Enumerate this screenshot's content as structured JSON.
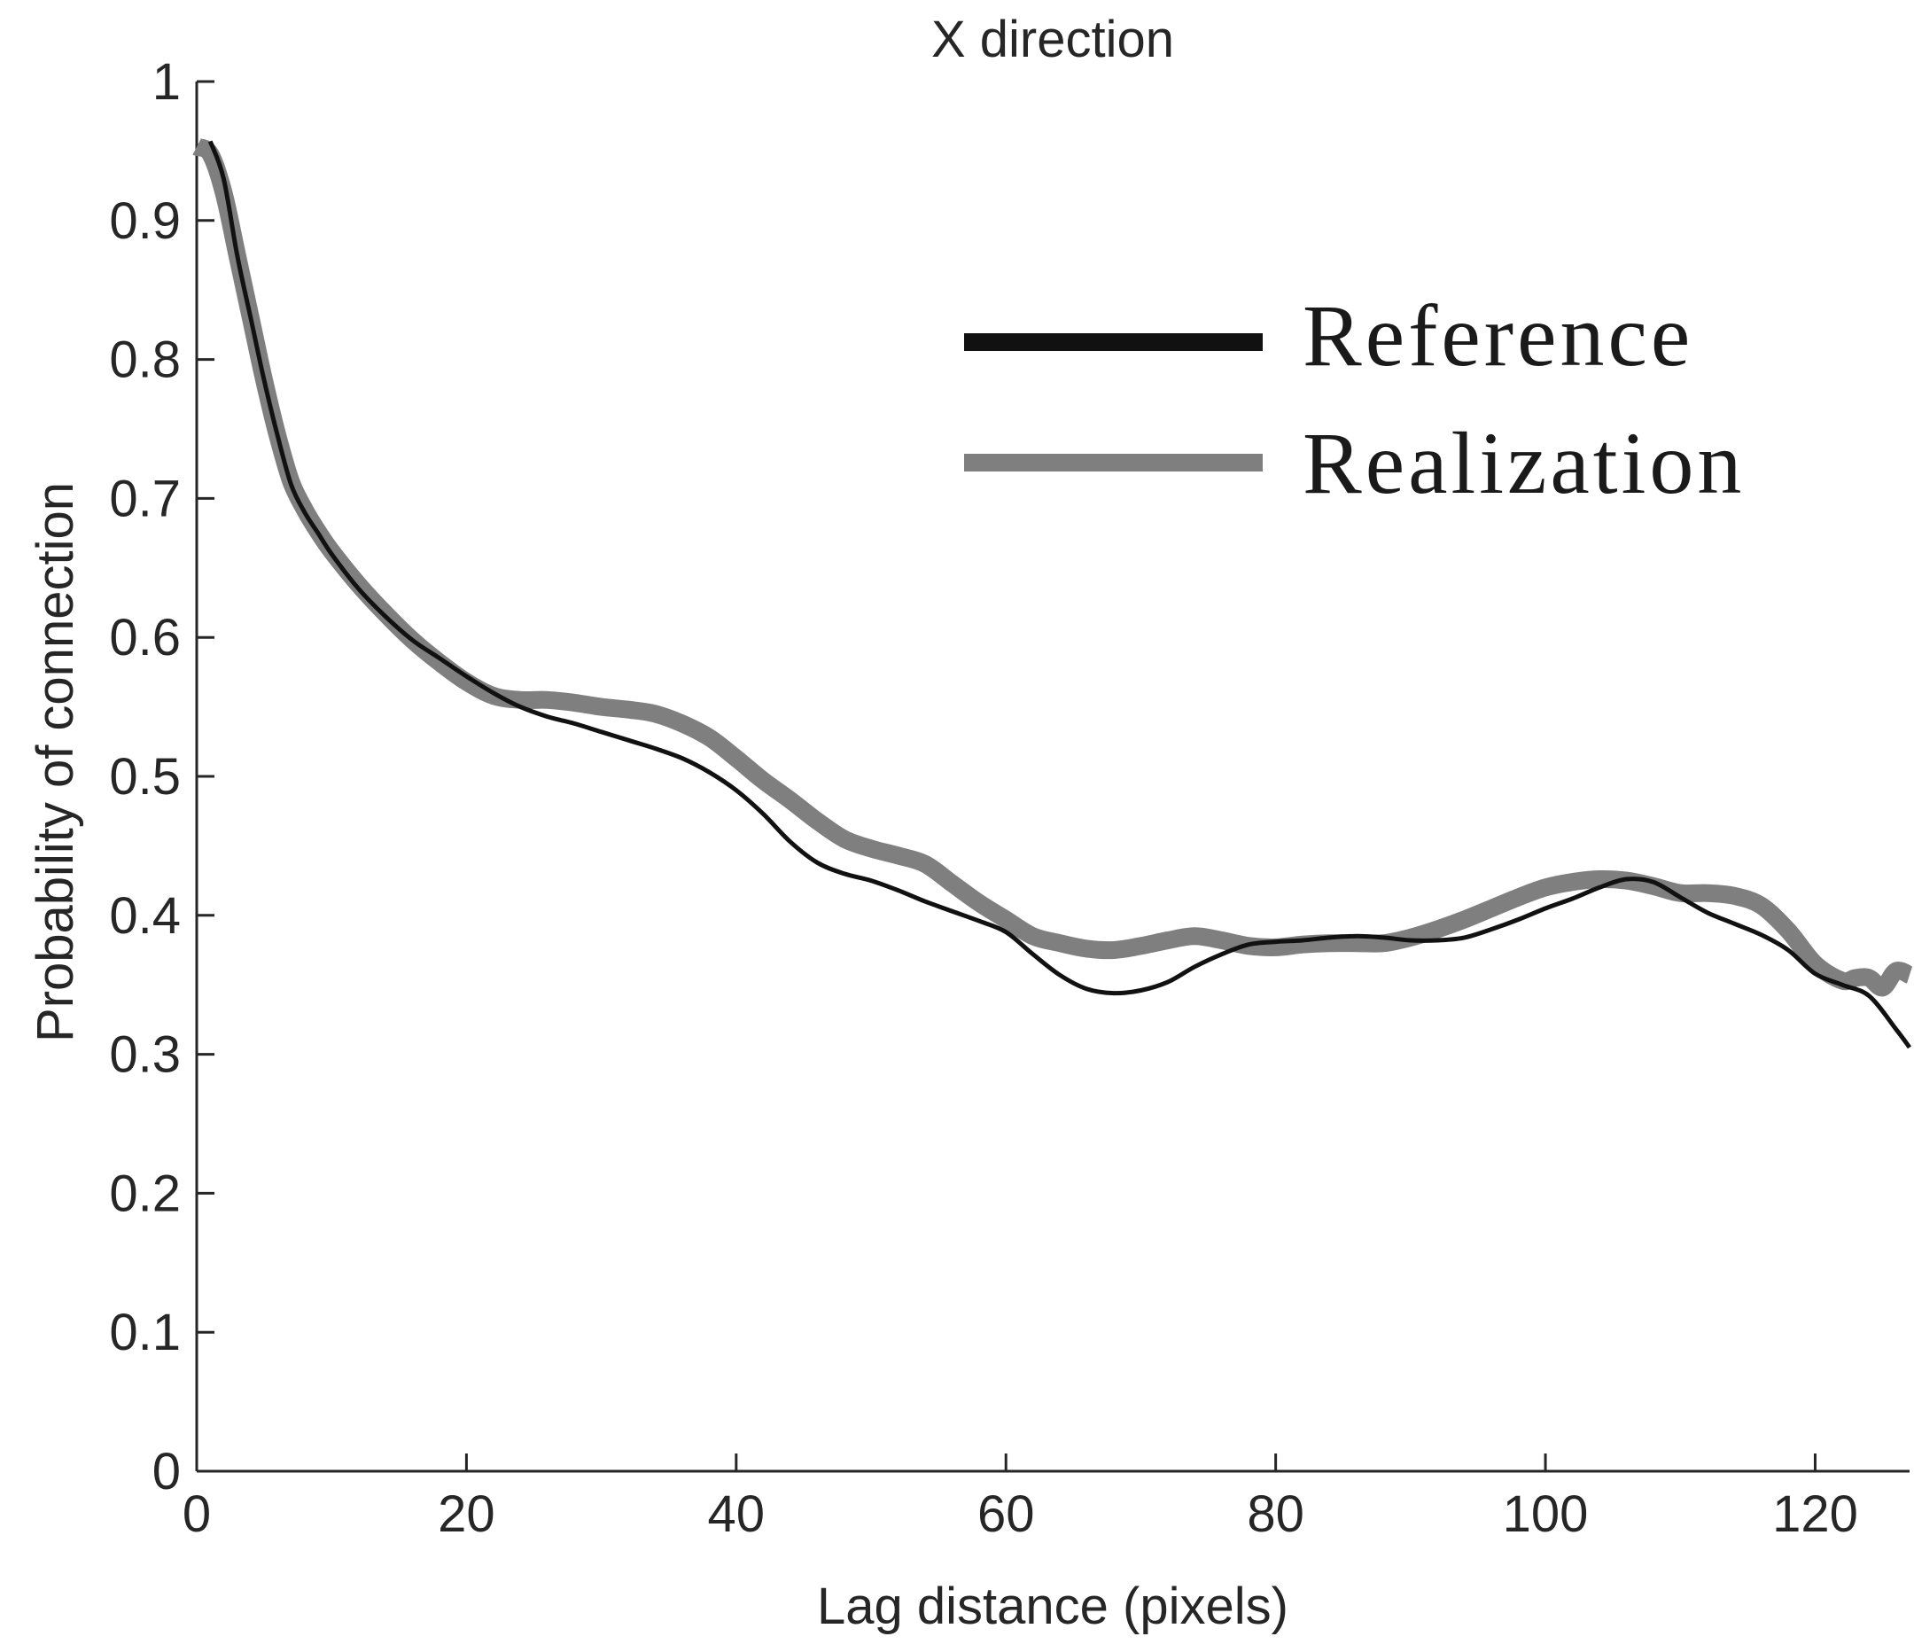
{
  "chart_data": {
    "type": "line",
    "title": "X direction",
    "xlabel": "Lag distance (pixels)",
    "ylabel": "Probability of connection",
    "xlim": [
      0,
      127
    ],
    "ylim": [
      0,
      1
    ],
    "xticks": [
      0,
      20,
      40,
      60,
      80,
      100,
      120
    ],
    "yticks": [
      0,
      0.1,
      0.2,
      0.3,
      0.4,
      0.5,
      0.6,
      0.7,
      0.8,
      0.9,
      1
    ],
    "ytick_labels": [
      "0",
      "0.1",
      "0.2",
      "0.3",
      "0.4",
      "0.5",
      "0.6",
      "0.7",
      "0.8",
      "0.9",
      "1"
    ],
    "legend": {
      "position": "top-right"
    },
    "series": [
      {
        "name": "Reference",
        "color": "#111111",
        "x": [
          1,
          2,
          3,
          4,
          5,
          6,
          7,
          8,
          9,
          10,
          12,
          14,
          16,
          18,
          20,
          22,
          24,
          26,
          28,
          30,
          32,
          34,
          36,
          38,
          40,
          42,
          44,
          46,
          48,
          50,
          52,
          54,
          56,
          58,
          60,
          62,
          64,
          66,
          68,
          70,
          72,
          74,
          76,
          78,
          80,
          82,
          84,
          86,
          88,
          90,
          92,
          94,
          96,
          98,
          100,
          102,
          104,
          106,
          108,
          110,
          112,
          114,
          116,
          118,
          120,
          122,
          124,
          126,
          127
        ],
        "y": [
          0.957,
          0.93,
          0.875,
          0.83,
          0.785,
          0.745,
          0.71,
          0.69,
          0.675,
          0.66,
          0.635,
          0.615,
          0.598,
          0.585,
          0.572,
          0.56,
          0.55,
          0.543,
          0.538,
          0.532,
          0.526,
          0.52,
          0.513,
          0.503,
          0.49,
          0.473,
          0.453,
          0.438,
          0.43,
          0.425,
          0.418,
          0.41,
          0.403,
          0.396,
          0.388,
          0.372,
          0.357,
          0.347,
          0.344,
          0.346,
          0.352,
          0.363,
          0.372,
          0.379,
          0.381,
          0.382,
          0.384,
          0.385,
          0.384,
          0.382,
          0.382,
          0.384,
          0.39,
          0.397,
          0.405,
          0.412,
          0.42,
          0.426,
          0.424,
          0.413,
          0.402,
          0.394,
          0.386,
          0.375,
          0.358,
          0.35,
          0.342,
          0.318,
          0.305
        ]
      },
      {
        "name": "Realization",
        "color": "#7f7f7f",
        "x": [
          0,
          1,
          2,
          3,
          4,
          5,
          6,
          7,
          8,
          9,
          10,
          12,
          14,
          16,
          18,
          20,
          22,
          24,
          26,
          28,
          30,
          32,
          34,
          36,
          38,
          40,
          42,
          44,
          46,
          48,
          50,
          52,
          54,
          56,
          58,
          60,
          62,
          64,
          66,
          68,
          70,
          72,
          74,
          76,
          78,
          80,
          82,
          84,
          86,
          88,
          90,
          92,
          94,
          96,
          98,
          100,
          102,
          104,
          106,
          108,
          110,
          112,
          114,
          116,
          118,
          120,
          122,
          123,
          124,
          125,
          126,
          127
        ],
        "y": [
          0.953,
          0.948,
          0.92,
          0.875,
          0.83,
          0.785,
          0.745,
          0.712,
          0.692,
          0.676,
          0.662,
          0.638,
          0.617,
          0.598,
          0.582,
          0.568,
          0.558,
          0.555,
          0.555,
          0.553,
          0.55,
          0.548,
          0.545,
          0.538,
          0.528,
          0.513,
          0.497,
          0.483,
          0.468,
          0.455,
          0.448,
          0.443,
          0.437,
          0.423,
          0.409,
          0.397,
          0.385,
          0.38,
          0.376,
          0.375,
          0.378,
          0.382,
          0.385,
          0.382,
          0.378,
          0.377,
          0.379,
          0.38,
          0.38,
          0.38,
          0.384,
          0.39,
          0.397,
          0.405,
          0.413,
          0.42,
          0.424,
          0.426,
          0.425,
          0.421,
          0.416,
          0.416,
          0.414,
          0.407,
          0.389,
          0.365,
          0.353,
          0.355,
          0.355,
          0.348,
          0.36,
          0.357
        ]
      }
    ]
  }
}
